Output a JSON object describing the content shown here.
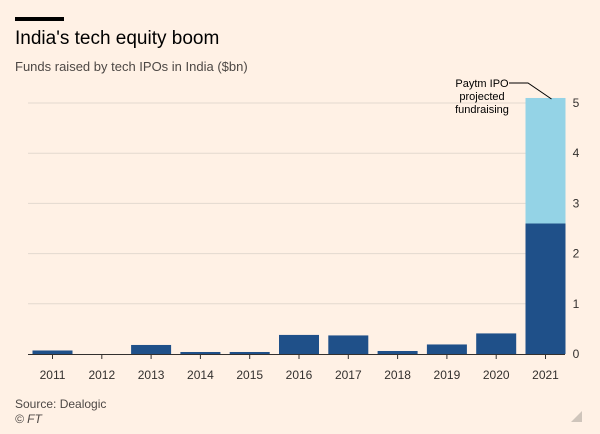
{
  "header": {
    "title": "India's tech equity boom",
    "subtitle": "Funds raised by tech IPOs in India ($bn)"
  },
  "footer": {
    "source": "Source: Dealogic",
    "copyright": "© FT"
  },
  "colors": {
    "background": "#fff1e5",
    "bar_dark": "#1f5089",
    "bar_light": "#94d3e6",
    "grid": "#e3d9cf",
    "axis": "#33302e"
  },
  "chart_data": {
    "type": "bar",
    "stacked": true,
    "title": "India's tech equity boom",
    "subtitle": "Funds raised by tech IPOs in India ($bn)",
    "xlabel": "",
    "ylabel": "",
    "categories": [
      "2011",
      "2012",
      "2013",
      "2014",
      "2015",
      "2016",
      "2017",
      "2018",
      "2019",
      "2020",
      "2021"
    ],
    "series": [
      {
        "name": "Funds raised",
        "values": [
          0.07,
          0.0,
          0.18,
          0.04,
          0.04,
          0.38,
          0.37,
          0.06,
          0.19,
          0.41,
          2.6
        ]
      },
      {
        "name": "Paytm IPO projected fundraising",
        "values": [
          0,
          0,
          0,
          0,
          0,
          0,
          0,
          0,
          0,
          0,
          2.5
        ]
      }
    ],
    "ylim": [
      0,
      5
    ],
    "yticks": [
      "0",
      "1",
      "2",
      "3",
      "4",
      "5"
    ],
    "y_axis_side": "right",
    "grid": true,
    "annotation": {
      "text_lines": [
        "Paytm IPO",
        "projected",
        "fundraising"
      ],
      "category": "2021",
      "series": "Paytm IPO projected fundraising"
    }
  }
}
